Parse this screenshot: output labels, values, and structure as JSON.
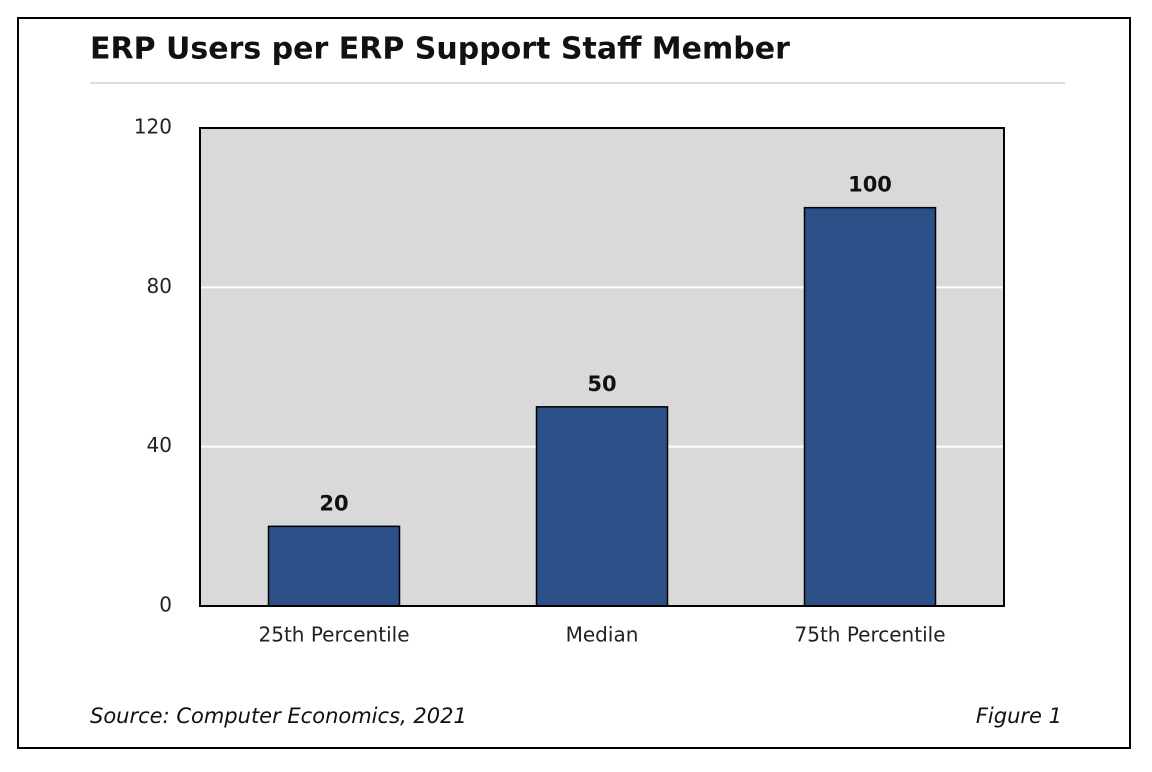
{
  "chart_data": {
    "type": "bar",
    "title": "ERP Users per ERP Support Staff Member",
    "categories": [
      "25th Percentile",
      "Median",
      "75th Percentile"
    ],
    "values": [
      20,
      50,
      100
    ],
    "color": "#2c4f87",
    "ylim": [
      0,
      120
    ],
    "yticks": [
      0,
      40,
      80,
      120
    ],
    "grid": true,
    "source": "Source: Computer Economics, 2021",
    "figure_label": "Figure 1"
  }
}
